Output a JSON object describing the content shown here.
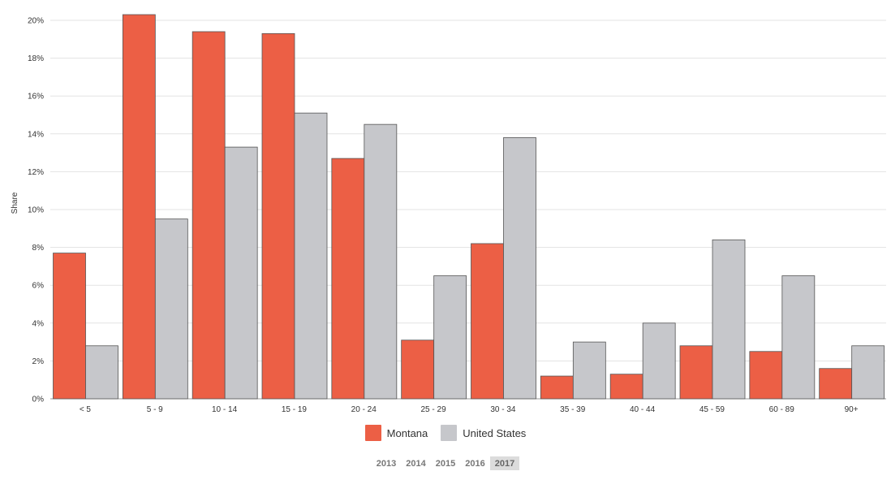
{
  "colors": {
    "montana": "#ec5f45",
    "united_states": "#c6c7cb",
    "grid": "#e3e3e3",
    "bar_stroke": "#555555"
  },
  "chart_data": {
    "type": "bar",
    "categories": [
      "< 5",
      "5 - 9",
      "10 - 14",
      "15 - 19",
      "20 - 24",
      "25 - 29",
      "30 - 34",
      "35 - 39",
      "40 - 44",
      "45 - 59",
      "60 - 89",
      "90+"
    ],
    "series": [
      {
        "name": "Montana",
        "values": [
          7.7,
          20.3,
          19.4,
          19.3,
          12.7,
          3.1,
          8.2,
          1.2,
          1.3,
          2.8,
          2.5,
          1.6
        ]
      },
      {
        "name": "United States",
        "values": [
          2.8,
          9.5,
          13.3,
          15.1,
          14.5,
          6.5,
          13.8,
          3.0,
          4.0,
          8.4,
          6.5,
          2.8
        ]
      }
    ],
    "xlabel": "",
    "ylabel": "Share",
    "ylim": [
      0,
      20
    ],
    "yticks": [
      "0%",
      "2%",
      "4%",
      "6%",
      "8%",
      "10%",
      "12%",
      "14%",
      "16%",
      "18%",
      "20%"
    ],
    "grid": true,
    "legend_position": "bottom-center"
  },
  "year_selector": {
    "years": [
      "2013",
      "2014",
      "2015",
      "2016",
      "2017"
    ],
    "selected": "2017"
  }
}
